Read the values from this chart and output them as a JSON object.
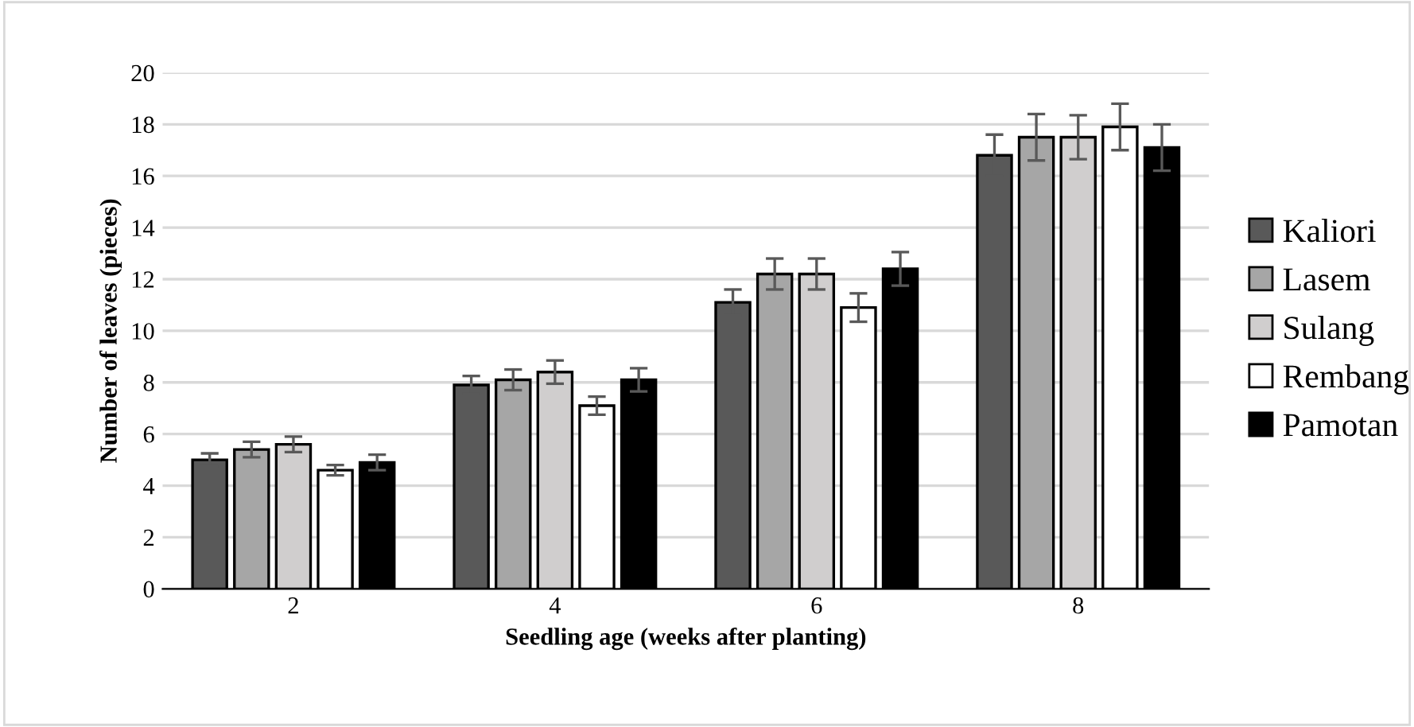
{
  "chart_data": {
    "type": "bar",
    "xlabel": "Seedling age (weeks after planting)",
    "ylabel": "Number of leaves (pieces)",
    "categories": [
      "2",
      "4",
      "6",
      "8"
    ],
    "series": [
      {
        "name": "Kaliori",
        "color": "#595959",
        "values": [
          5.0,
          7.9,
          11.1,
          16.8
        ],
        "errors": [
          0.25,
          0.35,
          0.5,
          0.8
        ]
      },
      {
        "name": "Lasem",
        "color": "#a6a6a6",
        "values": [
          5.4,
          8.1,
          12.2,
          17.5
        ],
        "errors": [
          0.3,
          0.4,
          0.6,
          0.9
        ]
      },
      {
        "name": "Sulang",
        "color": "#d0cece",
        "values": [
          5.6,
          8.4,
          12.2,
          17.5
        ],
        "errors": [
          0.3,
          0.45,
          0.6,
          0.85
        ]
      },
      {
        "name": "Rembang",
        "color": "#ffffff",
        "values": [
          4.6,
          7.1,
          10.9,
          17.9
        ],
        "errors": [
          0.2,
          0.35,
          0.55,
          0.9
        ]
      },
      {
        "name": "Pamotan",
        "color": "#000000",
        "values": [
          4.9,
          8.1,
          12.4,
          17.1
        ],
        "errors": [
          0.3,
          0.45,
          0.65,
          0.9
        ]
      }
    ],
    "ylim": [
      0,
      20
    ],
    "yticks": [
      0,
      2,
      4,
      6,
      8,
      10,
      12,
      14,
      16,
      18,
      20
    ],
    "grid": "y",
    "legend": "right"
  }
}
